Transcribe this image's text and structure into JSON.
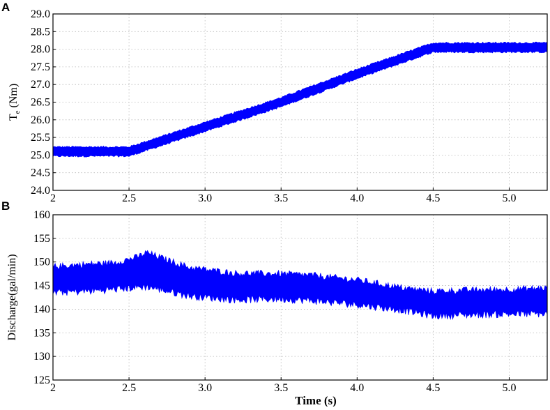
{
  "chart_data": [
    {
      "panel": "A",
      "type": "area",
      "ylabel_main": "T",
      "ylabel_sub": "e",
      "ylabel_unit": " (Nm)",
      "xlim": [
        2,
        5.25
      ],
      "ylim": [
        24.0,
        29.0
      ],
      "x_ticks": [
        "2",
        "2.5",
        "3.0",
        "3.5",
        "4.0",
        "4.5",
        "5.0"
      ],
      "y_ticks": [
        "24.0",
        "24.5",
        "25.0",
        "25.5",
        "26.0",
        "26.5",
        "27.0",
        "27.5",
        "28.0",
        "28.5",
        "29.0"
      ],
      "grid": true,
      "color": "#0000ff",
      "series_center": {
        "x": [
          2.0,
          2.5,
          3.0,
          3.5,
          4.0,
          4.5,
          5.25
        ],
        "y": [
          25.1,
          25.1,
          25.8,
          26.5,
          27.3,
          28.05,
          28.05
        ]
      },
      "band_half_width": 0.13
    },
    {
      "panel": "B",
      "type": "area",
      "ylabel": "Discharge(gal/min)",
      "xlabel": "Time (s)",
      "xlim": [
        2,
        5.25
      ],
      "ylim": [
        125,
        160
      ],
      "x_ticks": [
        "2",
        "2.5",
        "3.0",
        "3.5",
        "4.0",
        "4.5",
        "5.0"
      ],
      "y_ticks": [
        "125",
        "130",
        "135",
        "140",
        "145",
        "150",
        "155",
        "160"
      ],
      "grid": true,
      "color": "#0000ff",
      "series_upper": {
        "x": [
          2.0,
          2.2,
          2.4,
          2.55,
          2.62,
          2.7,
          2.9,
          3.2,
          3.5,
          3.7,
          4.0,
          4.3,
          4.5,
          4.7,
          5.0,
          5.25
        ],
        "y": [
          149.0,
          149.5,
          149.8,
          151.0,
          152.0,
          151.0,
          148.8,
          147.6,
          147.5,
          147.2,
          146.2,
          144.5,
          143.8,
          144.0,
          144.2,
          144.5
        ]
      },
      "series_lower": {
        "x": [
          2.0,
          2.2,
          2.4,
          2.55,
          2.62,
          2.7,
          2.9,
          3.2,
          3.5,
          3.7,
          4.0,
          4.3,
          4.5,
          4.7,
          5.0,
          5.25
        ],
        "y": [
          143.5,
          143.8,
          144.2,
          144.6,
          144.8,
          144.2,
          142.8,
          142.0,
          142.2,
          141.8,
          141.0,
          139.8,
          138.6,
          138.8,
          139.0,
          139.0
        ]
      }
    }
  ]
}
